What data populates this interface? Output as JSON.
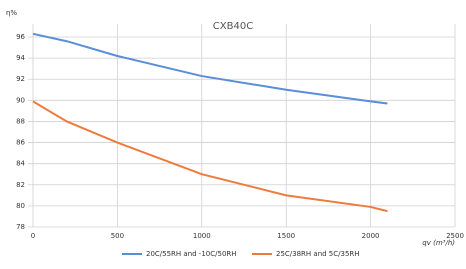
{
  "chart_data": {
    "type": "line",
    "title": "CXB40C",
    "y_label": "η%",
    "x_label": "qv (m³/h)",
    "x": [
      0,
      200,
      500,
      1000,
      1500,
      2000,
      2100
    ],
    "series": [
      {
        "name": "20C/55RH and -10C/50RH",
        "color": "#5b8ed8",
        "values": [
          96.3,
          95.6,
          94.2,
          92.3,
          91.0,
          89.9,
          89.7
        ]
      },
      {
        "name": "25C/38RH and 5C/35RH",
        "color": "#ee7b3b",
        "values": [
          89.9,
          88.0,
          86.0,
          83.0,
          81.0,
          79.9,
          79.5
        ]
      }
    ],
    "xlim": [
      0,
      2500
    ],
    "xticks": [
      0,
      500,
      1000,
      1500,
      2000,
      2500
    ],
    "ylim": [
      78,
      96
    ],
    "yticks": [
      78,
      80,
      82,
      84,
      86,
      88,
      90,
      92,
      94,
      96
    ],
    "grid": true,
    "legend": "bottom"
  }
}
